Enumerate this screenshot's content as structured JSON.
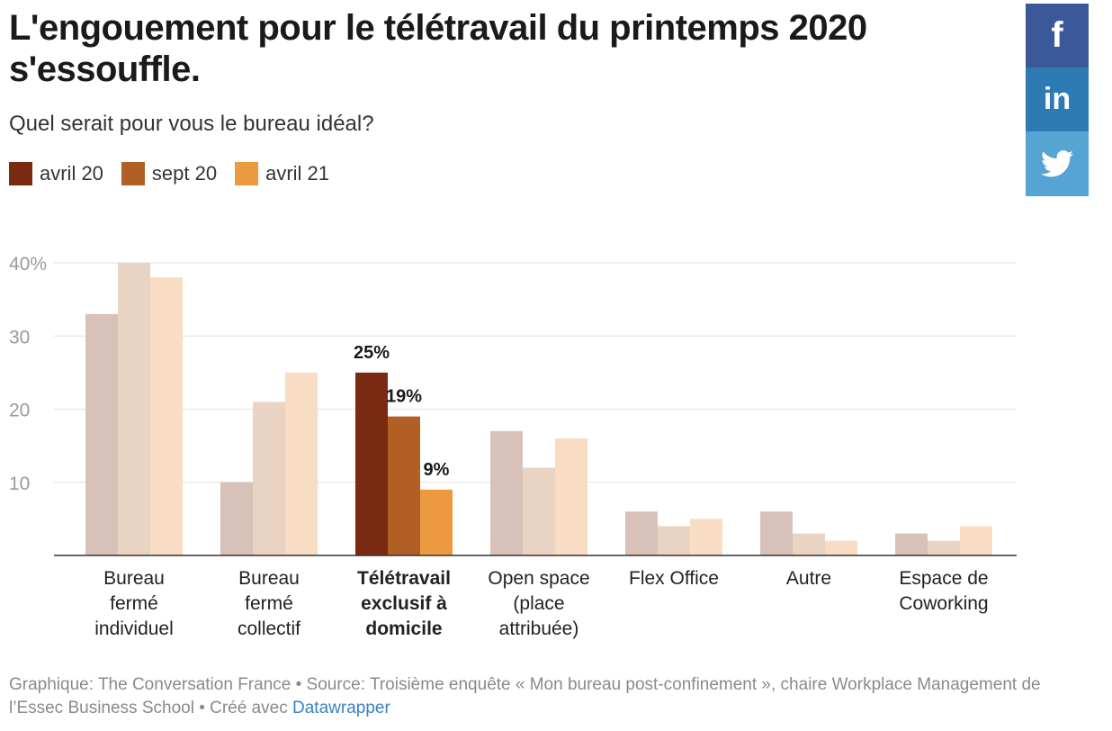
{
  "title": "L'engouement pour le télétravail du printemps 2020 s'essouffle.",
  "subtitle": "Quel serait pour vous le bureau idéal?",
  "legend": [
    {
      "label": "avril 20",
      "color": "#7a2a10"
    },
    {
      "label": "sept 20",
      "color": "#b25f25"
    },
    {
      "label": "avril 21",
      "color": "#ec9a3f"
    }
  ],
  "social": {
    "facebook": "f",
    "linkedin": "in",
    "twitter_icon": "twitter-bird"
  },
  "chart_data": {
    "type": "bar",
    "categories": [
      "Bureau fermé individuel",
      "Bureau fermé collectif",
      "Télétravail exclusif à domicile",
      "Open space (place attribuée)",
      "Flex Office",
      "Autre",
      "Espace de Coworking"
    ],
    "category_lines": [
      [
        "Bureau",
        "fermé",
        "individuel"
      ],
      [
        "Bureau",
        "fermé",
        "collectif"
      ],
      [
        "Télétravail",
        "exclusif à",
        "domicile"
      ],
      [
        "Open space",
        "(place",
        "attribuée)"
      ],
      [
        "Flex Office"
      ],
      [
        "Autre"
      ],
      [
        "Espace de",
        "Coworking"
      ]
    ],
    "highlight_index": 2,
    "series": [
      {
        "name": "avril 20",
        "values": [
          33,
          10,
          25,
          17,
          6,
          6,
          3
        ]
      },
      {
        "name": "sept 20",
        "values": [
          40,
          21,
          19,
          12,
          4,
          3,
          2
        ]
      },
      {
        "name": "avril 21",
        "values": [
          38,
          25,
          9,
          16,
          5,
          2,
          4
        ]
      }
    ],
    "muted_colors": [
      "#d8c1b9",
      "#e9d3c3",
      "#f8dcc3"
    ],
    "highlight_colors": [
      "#7a2a10",
      "#b25f25",
      "#ec9a3f"
    ],
    "data_labels": [
      "25%",
      "19%",
      "9%"
    ],
    "yticks": [
      {
        "value": 40,
        "label": "40%"
      },
      {
        "value": 30,
        "label": "30"
      },
      {
        "value": 20,
        "label": "20"
      },
      {
        "value": 10,
        "label": "10"
      }
    ],
    "ylim": [
      0,
      40
    ],
    "grid": true,
    "legend_position": "top-left"
  },
  "footer": {
    "text": "Graphique: The Conversation France • Source: Troisième enquête « Mon bureau post-confinement », chaire Workplace Management de l’Essec Business School • Créé avec ",
    "link": "Datawrapper"
  }
}
